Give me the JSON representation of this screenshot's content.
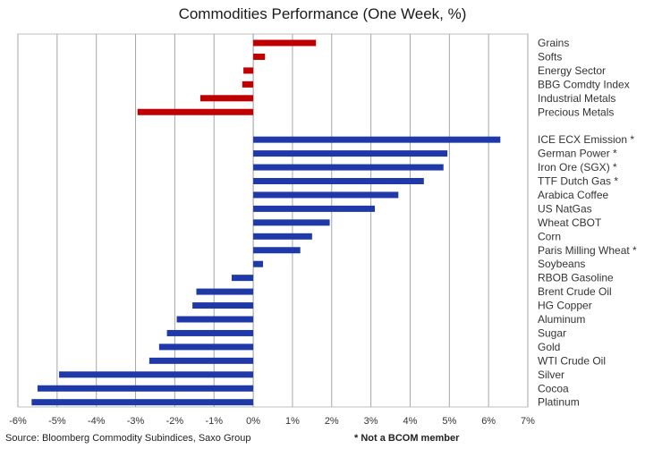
{
  "chart_data": {
    "type": "bar",
    "orientation": "horizontal",
    "title": "Commodities Performance (One Week, %)",
    "xlabel": "",
    "ylabel": "",
    "xlim": [
      -6,
      7
    ],
    "x_ticks": [
      "-6%",
      "-5%",
      "-4%",
      "-3%",
      "-2%",
      "-1%",
      "0%",
      "1%",
      "2%",
      "3%",
      "4%",
      "5%",
      "6%",
      "7%"
    ],
    "grid": true,
    "groups": [
      {
        "color": "#c00000",
        "categories": [
          "Grains",
          "Softs",
          "Energy Sector",
          "BBG Comdty Index",
          "Industrial Metals",
          "Precious Metals"
        ],
        "values": [
          1.6,
          0.3,
          -0.25,
          -0.28,
          -1.35,
          -2.95
        ]
      },
      {
        "color": "#1f3aa8",
        "categories": [
          "ICE ECX Emission *",
          "German Power *",
          "Iron Ore (SGX) *",
          "TTF Dutch Gas *",
          "Arabica Coffee",
          "US NatGas",
          "Wheat CBOT",
          "Corn",
          "Paris Milling Wheat *",
          "Soybeans",
          "RBOB Gasoline",
          "Brent Crude Oil",
          "HG Copper",
          "Aluminum",
          "Sugar",
          "Gold",
          "WTI Crude Oil",
          "Silver",
          "Cocoa",
          "Platinum"
        ],
        "values": [
          6.3,
          4.95,
          4.85,
          4.35,
          3.7,
          3.1,
          1.95,
          1.5,
          1.2,
          0.25,
          -0.55,
          -1.45,
          -1.55,
          -1.95,
          -2.2,
          -2.4,
          -2.65,
          -4.95,
          -5.5,
          -5.65
        ]
      }
    ]
  },
  "footer": {
    "source": "Source: Bloomberg Commodity Subindices, Saxo Group",
    "note": "* Not a BCOM member"
  }
}
